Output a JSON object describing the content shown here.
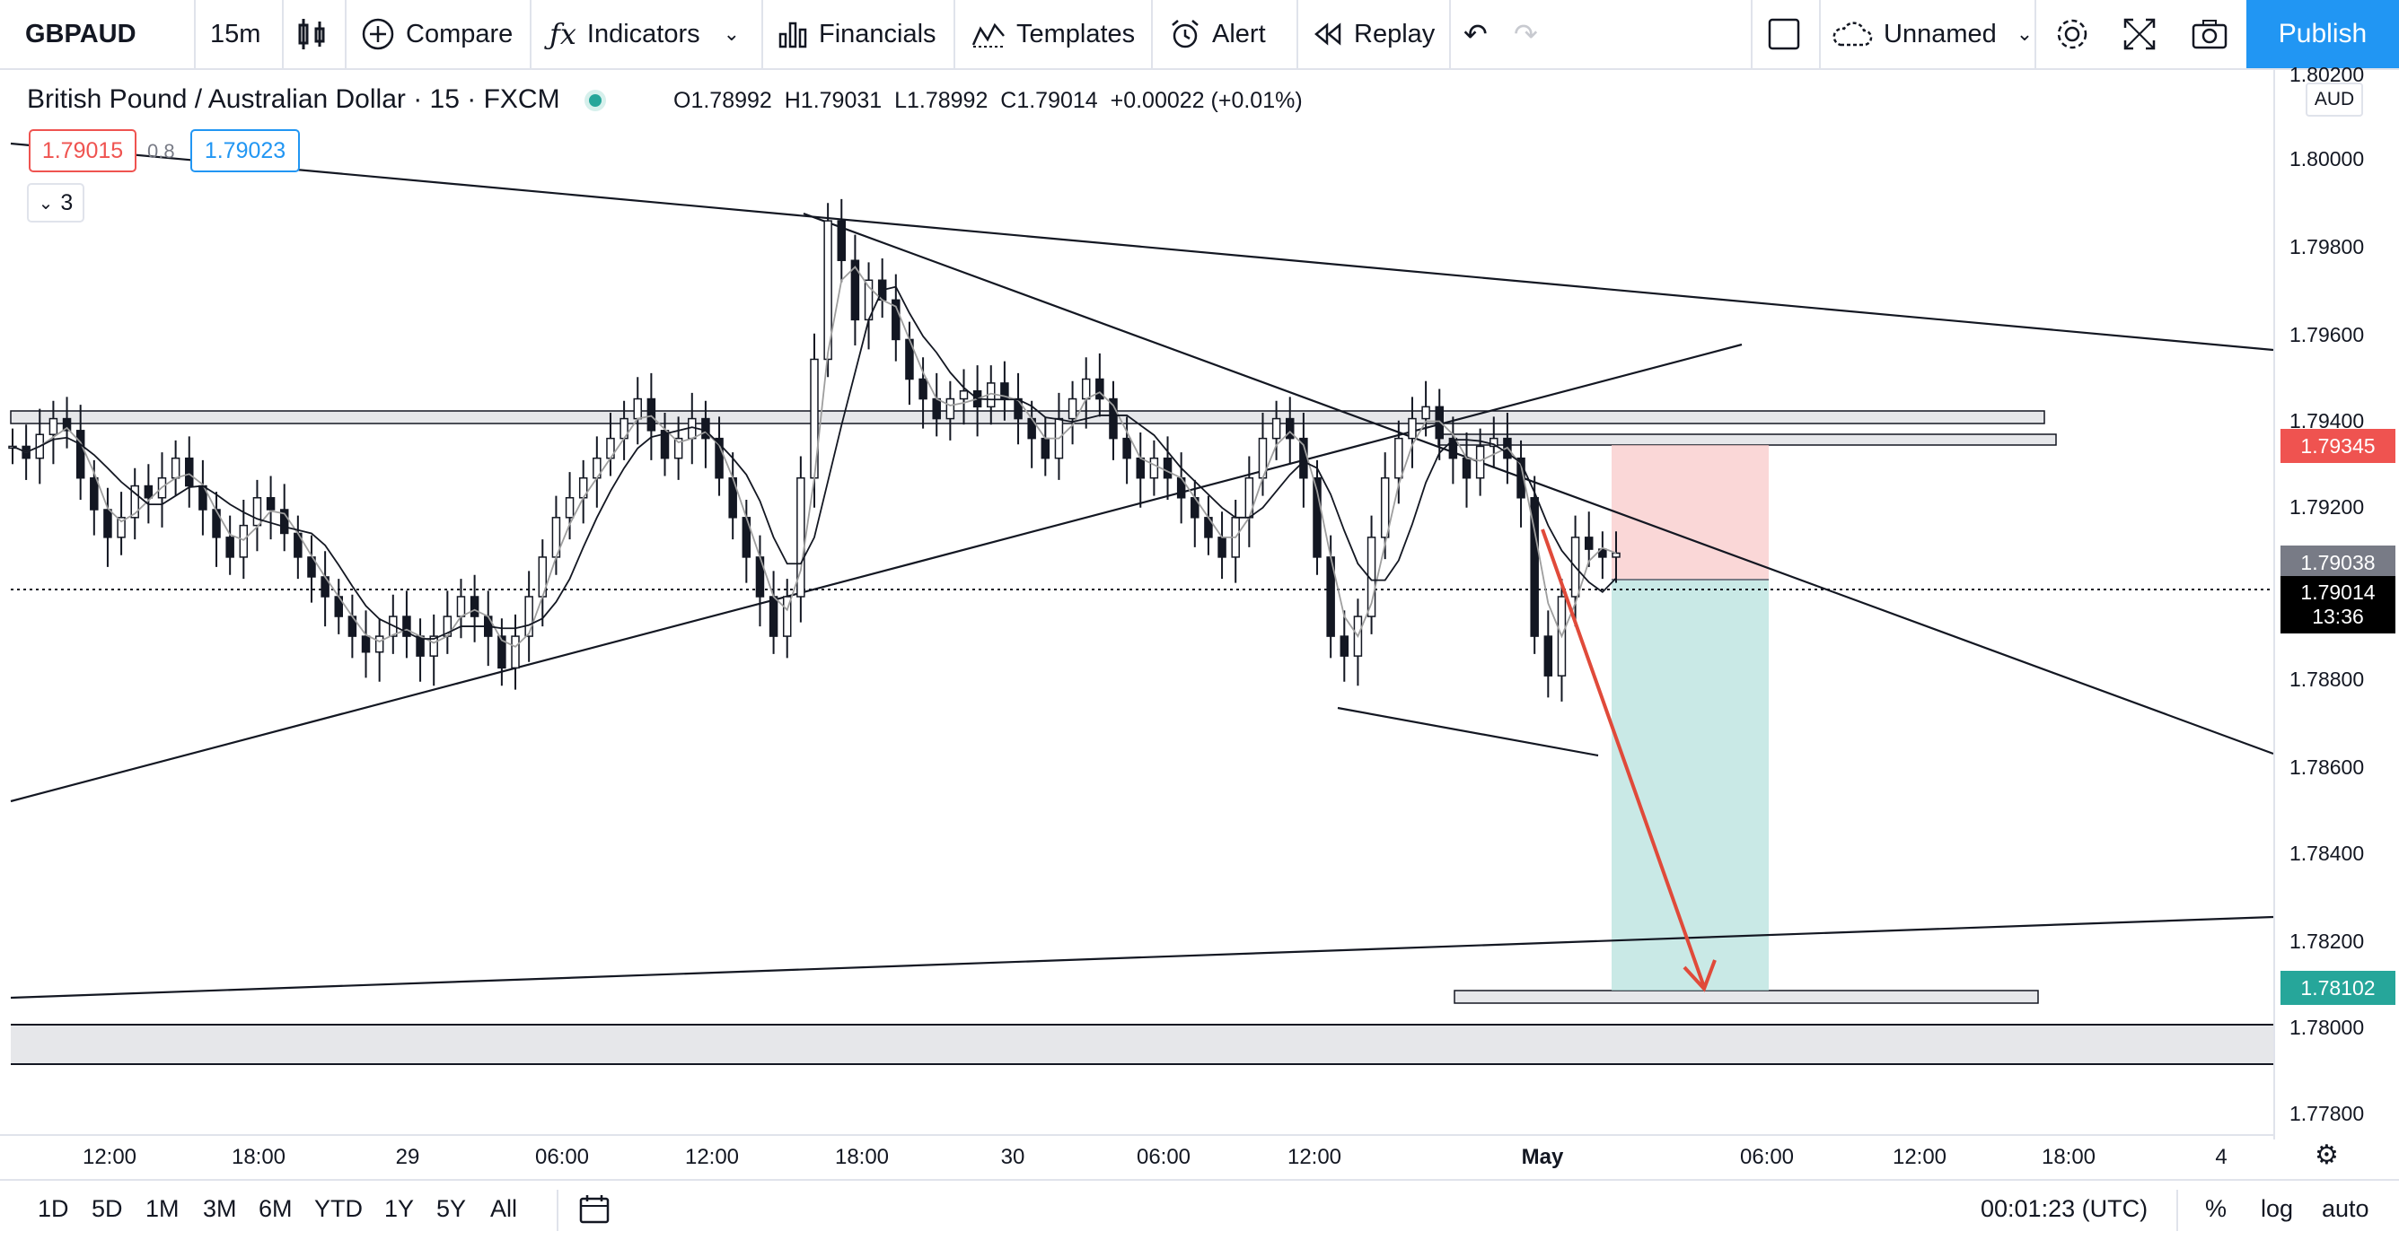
{
  "toolbar": {
    "symbol": "GBPAUD",
    "interval": "15m",
    "compare": "Compare",
    "indicators": "Indicators",
    "financials": "Financials",
    "templates": "Templates",
    "alert": "Alert",
    "replay": "Replay",
    "layout_name": "Unnamed",
    "publish": "Publish"
  },
  "legend": {
    "title": "British Pound / Australian Dollar · 15 · FXCM",
    "o_label": "O",
    "o": "1.78992",
    "h_label": "H",
    "h": "1.79031",
    "l_label": "L",
    "l": "1.78992",
    "c_label": "C",
    "c": "1.79014",
    "change": "+0.00022 (+0.01%)",
    "sell_price": "1.79015",
    "spread": "0.8",
    "buy_price": "1.79023",
    "indicator_count": "3"
  },
  "price_axis": {
    "top_partial": "1.80200",
    "currency": "AUD",
    "ticks": [
      "1.80000",
      "1.79800",
      "1.79600",
      "1.79400",
      "1.79200",
      "1.78800",
      "1.78600",
      "1.78400",
      "1.78200",
      "1.78000",
      "1.77800"
    ],
    "labels": {
      "stop": "1.79345",
      "ma": "1.79038",
      "last": "1.79014",
      "countdown": "13:36",
      "target": "1.78102"
    }
  },
  "time_axis": [
    "12:00",
    "18:00",
    "29",
    "06:00",
    "12:00",
    "18:00",
    "30",
    "06:00",
    "12:00",
    "May",
    "06:00",
    "12:00",
    "18:00",
    "4"
  ],
  "bottom": {
    "ranges": [
      "1D",
      "5D",
      "1M",
      "3M",
      "6M",
      "YTD",
      "1Y",
      "5Y",
      "All"
    ],
    "clock": "00:01:23 (UTC)",
    "percent": "%",
    "log": "log",
    "auto": "auto"
  },
  "colors": {
    "accent": "#2196f3",
    "sell": "#ef5350",
    "stop_zone": "#f8c9c9",
    "target_zone": "#b2dfdb",
    "target_label": "#26a69a",
    "last_label": "#000000",
    "ma_label": "#787b86"
  },
  "chart_data": {
    "type": "candlestick",
    "symbol": "British Pound / Australian Dollar",
    "timeframe": "15",
    "ylim": [
      1.7772,
      1.802
    ],
    "last": 1.79014,
    "ohlc_current": {
      "o": 1.78992,
      "h": 1.79031,
      "l": 1.78992,
      "c": 1.79014
    },
    "short_position": {
      "entry": 1.79014,
      "stop": 1.79345,
      "target": 1.78102
    },
    "horizontal_levels": [
      1.794,
      1.7935,
      1.781,
      1.78
    ],
    "moving_average": 1.79038,
    "closes": [
      1.7928,
      1.7925,
      1.7931,
      1.7935,
      1.7932,
      1.792,
      1.7912,
      1.7905,
      1.791,
      1.7918,
      1.7915,
      1.792,
      1.7925,
      1.7918,
      1.7912,
      1.7905,
      1.79,
      1.7908,
      1.7915,
      1.7912,
      1.7906,
      1.79,
      1.7895,
      1.789,
      1.7885,
      1.788,
      1.7876,
      1.788,
      1.7885,
      1.788,
      1.7875,
      1.788,
      1.7885,
      1.789,
      1.7885,
      1.788,
      1.7872,
      1.788,
      1.789,
      1.79,
      1.791,
      1.7915,
      1.792,
      1.7925,
      1.793,
      1.7935,
      1.794,
      1.7932,
      1.7925,
      1.793,
      1.7935,
      1.793,
      1.792,
      1.791,
      1.79,
      1.789,
      1.788,
      1.789,
      1.792,
      1.795,
      1.7985,
      1.7975,
      1.796,
      1.797,
      1.7965,
      1.7955,
      1.7945,
      1.794,
      1.7935,
      1.794,
      1.7942,
      1.7938,
      1.7944,
      1.794,
      1.7935,
      1.793,
      1.7925,
      1.7935,
      1.794,
      1.7945,
      1.794,
      1.793,
      1.7925,
      1.792,
      1.7925,
      1.792,
      1.7915,
      1.791,
      1.7905,
      1.79,
      1.791,
      1.792,
      1.793,
      1.7935,
      1.793,
      1.792,
      1.79,
      1.788,
      1.7875,
      1.7885,
      1.7905,
      1.792,
      1.793,
      1.7935,
      1.7938,
      1.793,
      1.7925,
      1.792,
      1.7928,
      1.793,
      1.7925,
      1.7915,
      1.788,
      1.787,
      1.789,
      1.7905,
      1.7902,
      1.79,
      1.7901
    ]
  }
}
